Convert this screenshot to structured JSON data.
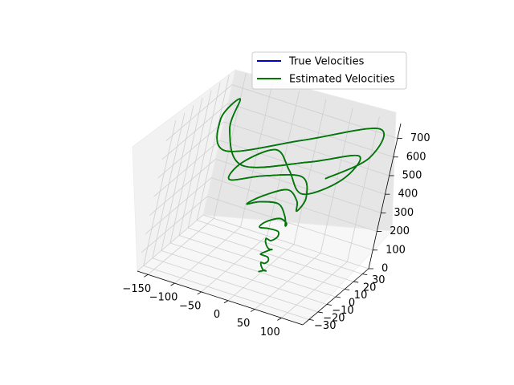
{
  "chart_data": {
    "type": "line",
    "projection": "3d",
    "title": "",
    "legend": {
      "placement": "top-right",
      "entries": [
        {
          "name": "True Velocities",
          "color": "#0000cc"
        },
        {
          "name": "Estimated Velocities",
          "color": "#007a00"
        }
      ]
    },
    "axes": {
      "x": {
        "label": "",
        "range": [
          -170,
          140
        ],
        "ticks": [
          -150,
          -100,
          -50,
          0,
          50,
          100
        ],
        "tick_labels": [
          "−150",
          "−100",
          "−50",
          "0",
          "50",
          "100"
        ]
      },
      "y": {
        "label": "",
        "range": [
          -37,
          37
        ],
        "ticks": [
          -30,
          -20,
          -10,
          0,
          10,
          20,
          30
        ],
        "tick_labels": [
          "−30",
          "−20",
          "−10",
          "0",
          "10",
          "20",
          "30"
        ]
      },
      "z": {
        "label": "",
        "range": [
          0,
          780
        ],
        "ticks": [
          0,
          100,
          200,
          300,
          400,
          500,
          600,
          700
        ],
        "tick_labels": [
          "0",
          "100",
          "200",
          "300",
          "400",
          "500",
          "600",
          "700"
        ]
      }
    },
    "grid": true,
    "series": [
      {
        "name": "True Velocities",
        "color": "#0000cc",
        "x": [
          -5,
          3,
          8,
          5,
          -2,
          -6,
          -2,
          5,
          8,
          4,
          -3,
          -6,
          -1,
          6,
          10,
          6,
          -3,
          -7,
          -2,
          9,
          15,
          10,
          -5,
          -15,
          -12,
          5,
          25,
          32,
          20,
          -5,
          -30,
          -40,
          -28,
          0,
          35,
          55,
          50,
          15,
          -35,
          -70,
          -75,
          -45,
          10,
          70,
          105,
          95,
          40,
          -40,
          -110,
          -140,
          -130,
          -70,
          20,
          110,
          145,
          120
        ],
        "y": [
          0,
          1.5,
          0,
          -1.5,
          0,
          1.5,
          0,
          -1.5,
          0,
          1.5,
          0,
          -1.5,
          0,
          2,
          0,
          -2,
          0,
          2,
          0,
          -3,
          0,
          3,
          0,
          -4,
          0,
          5,
          0,
          -6,
          0,
          7,
          0,
          -9,
          0,
          11,
          0,
          -13,
          0,
          15,
          0,
          -17,
          0,
          19,
          0,
          -22,
          0,
          25,
          0,
          -27,
          0,
          29,
          0,
          -31,
          0,
          33,
          0,
          -35
        ],
        "z": [
          0,
          8,
          16,
          24,
          33,
          42,
          51,
          60,
          70,
          80,
          90,
          100,
          110,
          121,
          132,
          143,
          155,
          167,
          179,
          192,
          205,
          218,
          232,
          246,
          260,
          275,
          290,
          305,
          320,
          336,
          352,
          368,
          384,
          400,
          417,
          434,
          451,
          468,
          486,
          504,
          522,
          540,
          558,
          576,
          594,
          612,
          630,
          648,
          666,
          684,
          700,
          715,
          728,
          740,
          750,
          758
        ]
      },
      {
        "name": "Estimated Velocities",
        "color": "#007a00",
        "x": [
          -5,
          3,
          8,
          5,
          -2,
          -6,
          -2,
          5,
          8,
          4,
          -3,
          -6,
          -1,
          6,
          10,
          6,
          -3,
          -7,
          -2,
          9,
          15,
          10,
          -5,
          -15,
          -12,
          5,
          25,
          32,
          20,
          -5,
          -30,
          -40,
          -28,
          0,
          35,
          55,
          50,
          15,
          -35,
          -70,
          -75,
          -45,
          10,
          70,
          105,
          95,
          40,
          -40,
          -110,
          -140,
          -130,
          -70,
          20,
          110,
          145,
          120
        ],
        "y": [
          0,
          1.5,
          0,
          -1.5,
          0,
          1.5,
          0,
          -1.5,
          0,
          1.5,
          0,
          -1.5,
          0,
          2,
          0,
          -2,
          0,
          2,
          0,
          -3,
          0,
          3,
          0,
          -4,
          0,
          5,
          0,
          -6,
          0,
          7,
          0,
          -9,
          0,
          11,
          0,
          -13,
          0,
          15,
          0,
          -17,
          0,
          19,
          0,
          -22,
          0,
          25,
          0,
          -27,
          0,
          29,
          0,
          -31,
          0,
          33,
          0,
          -35
        ],
        "z": [
          0,
          8,
          16,
          24,
          33,
          42,
          51,
          60,
          70,
          80,
          90,
          100,
          110,
          121,
          132,
          143,
          155,
          167,
          179,
          192,
          205,
          218,
          232,
          246,
          260,
          275,
          290,
          305,
          320,
          336,
          352,
          368,
          384,
          400,
          417,
          434,
          451,
          468,
          486,
          504,
          522,
          540,
          558,
          576,
          594,
          612,
          630,
          648,
          666,
          684,
          700,
          715,
          728,
          740,
          750,
          758
        ]
      }
    ]
  }
}
